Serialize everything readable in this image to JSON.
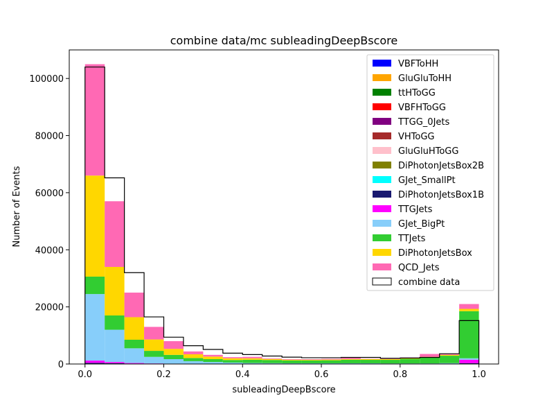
{
  "chart_data": {
    "type": "bar",
    "stacked": true,
    "title": "combine data/mc subleadingDeepBscore",
    "xlabel": "subleadingDeepBscore",
    "ylabel": "Number of Events",
    "xlim": [
      -0.04,
      1.05
    ],
    "ylim": [
      0,
      110000
    ],
    "xticks": [
      0.0,
      0.2,
      0.4,
      0.6,
      0.8,
      1.0
    ],
    "xtick_labels": [
      "0.0",
      "0.2",
      "0.4",
      "0.6",
      "0.8",
      "1.0"
    ],
    "yticks": [
      0,
      20000,
      40000,
      60000,
      80000,
      100000
    ],
    "ytick_labels": [
      "0",
      "20000",
      "40000",
      "60000",
      "80000",
      "100000"
    ],
    "grid": false,
    "legend_position": "top-right",
    "bin_edges": [
      0.0,
      0.05,
      0.1,
      0.15,
      0.2,
      0.25,
      0.3,
      0.35,
      0.4,
      0.45,
      0.5,
      0.55,
      0.6,
      0.65,
      0.7,
      0.75,
      0.8,
      0.85,
      0.9,
      0.95,
      1.0
    ],
    "series": [
      {
        "name": "VBFToHH",
        "color": "#0000ff",
        "values": [
          0,
          0,
          0,
          0,
          0,
          0,
          0,
          0,
          0,
          0,
          0,
          0,
          0,
          0,
          0,
          0,
          0,
          0,
          0,
          0
        ]
      },
      {
        "name": "GluGluToHH",
        "color": "#ffa500",
        "values": [
          0,
          0,
          0,
          0,
          0,
          0,
          0,
          0,
          0,
          0,
          0,
          0,
          0,
          0,
          0,
          0,
          0,
          0,
          0,
          0
        ]
      },
      {
        "name": "ttHToGG",
        "color": "#008000",
        "values": [
          0,
          0,
          0,
          0,
          0,
          0,
          0,
          0,
          0,
          0,
          0,
          0,
          0,
          0,
          0,
          0,
          0,
          0,
          0,
          0
        ]
      },
      {
        "name": "VBFHToGG",
        "color": "#ff0000",
        "values": [
          0,
          0,
          0,
          0,
          0,
          0,
          0,
          0,
          0,
          0,
          0,
          0,
          0,
          0,
          0,
          0,
          0,
          0,
          0,
          0
        ]
      },
      {
        "name": "TTGG_0Jets",
        "color": "#800080",
        "values": [
          0,
          0,
          0,
          0,
          0,
          0,
          0,
          0,
          0,
          0,
          0,
          0,
          0,
          0,
          0,
          0,
          0,
          0,
          0,
          0
        ]
      },
      {
        "name": "VHToGG",
        "color": "#a52a2a",
        "values": [
          0,
          0,
          0,
          0,
          0,
          0,
          0,
          0,
          0,
          0,
          0,
          0,
          0,
          0,
          0,
          0,
          0,
          0,
          0,
          0
        ]
      },
      {
        "name": "GluGluHToGG",
        "color": "#ffc0cb",
        "values": [
          0,
          0,
          0,
          0,
          0,
          0,
          0,
          0,
          0,
          0,
          0,
          0,
          0,
          0,
          0,
          0,
          0,
          0,
          0,
          0
        ]
      },
      {
        "name": "DiPhotonJetsBox2B",
        "color": "#808000",
        "values": [
          0,
          0,
          0,
          0,
          0,
          0,
          0,
          0,
          0,
          0,
          0,
          0,
          0,
          0,
          0,
          0,
          0,
          0,
          0,
          0
        ]
      },
      {
        "name": "GJet_SmallPt",
        "color": "#00ffff",
        "values": [
          0,
          0,
          0,
          0,
          0,
          0,
          0,
          0,
          0,
          0,
          0,
          0,
          0,
          0,
          0,
          0,
          0,
          0,
          0,
          0
        ]
      },
      {
        "name": "DiPhotonJetsBox1B",
        "color": "#191970",
        "values": [
          400,
          300,
          150,
          100,
          80,
          60,
          50,
          40,
          30,
          30,
          30,
          30,
          30,
          30,
          30,
          30,
          30,
          30,
          40,
          300
        ]
      },
      {
        "name": "TTGJets",
        "color": "#ff00ff",
        "values": [
          800,
          400,
          200,
          100,
          60,
          40,
          30,
          20,
          20,
          20,
          20,
          20,
          20,
          20,
          20,
          20,
          20,
          30,
          60,
          1200
        ]
      },
      {
        "name": "GJet_BigPt",
        "color": "#87cefa",
        "values": [
          23300,
          11300,
          5150,
          2300,
          1560,
          900,
          620,
          440,
          300,
          250,
          200,
          200,
          200,
          200,
          200,
          150,
          150,
          150,
          200,
          500
        ]
      },
      {
        "name": "TTJets",
        "color": "#32cd32",
        "values": [
          6100,
          5000,
          3000,
          2100,
          1500,
          1100,
          1000,
          900,
          1150,
          1100,
          1000,
          1000,
          1050,
          1250,
          1200,
          1250,
          1600,
          2000,
          2600,
          16500
        ]
      },
      {
        "name": "DiPhotonJetsBox",
        "color": "#ffd700",
        "values": [
          35400,
          17000,
          7900,
          4000,
          2100,
          1300,
          900,
          600,
          500,
          350,
          250,
          250,
          250,
          250,
          250,
          250,
          300,
          300,
          300,
          800
        ]
      },
      {
        "name": "QCD_Jets",
        "color": "#ff69b4",
        "values": [
          39000,
          23000,
          8600,
          4400,
          2700,
          1000,
          600,
          400,
          500,
          200,
          200,
          200,
          250,
          550,
          100,
          100,
          200,
          1000,
          300,
          1700
        ]
      }
    ],
    "overlay": {
      "name": "combine data",
      "style": "step",
      "color": "#000000",
      "values": [
        104000,
        65200,
        32000,
        16500,
        9400,
        6400,
        5100,
        3800,
        3300,
        2800,
        2400,
        2200,
        2200,
        2300,
        2300,
        2000,
        2100,
        2300,
        3600,
        15200
      ]
    }
  }
}
